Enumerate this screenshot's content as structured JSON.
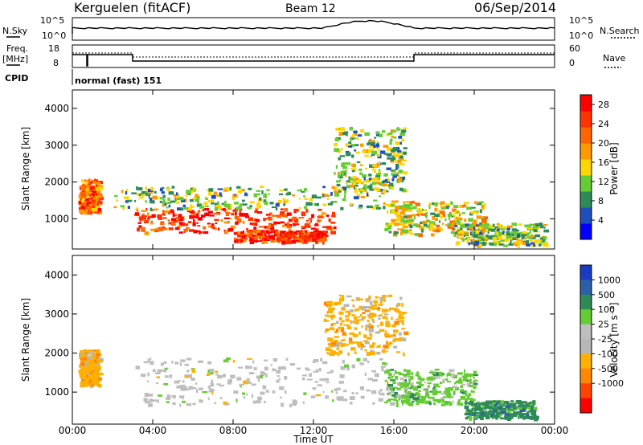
{
  "header": {
    "station": "Kerguelen (fitACF)",
    "beam": "Beam 12",
    "date": "06/Sep/2014"
  },
  "noise_panel": {
    "left_label": "N.Sky",
    "right_label": "N.Search",
    "tick_top": "10^5",
    "tick_bottom": "10^0"
  },
  "freq_panel": {
    "label_line1": "Freq.",
    "label_line2": "[MHz]",
    "ticks_left": [
      "18",
      "8"
    ],
    "ticks_right": [
      "60",
      "0"
    ],
    "right_label": "Nave"
  },
  "cpid": {
    "label": "CPID",
    "value": "normal (fast) 151"
  },
  "colors": {
    "power": [
      "#0000ff",
      "#1f4fbf",
      "#2e8b57",
      "#66cc33",
      "#ffd700",
      "#ff9900",
      "#ff6600",
      "#ff3300",
      "#ff0000"
    ],
    "velocity": [
      "#1a3cc4",
      "#2b5fa8",
      "#2e8b57",
      "#66cc33",
      "#bebebe",
      "#b7b7b7",
      "#ffb000",
      "#ff8800",
      "#ff4400",
      "#ff0000"
    ]
  },
  "chart_data": [
    {
      "type": "heatmap",
      "title": "Power",
      "xlabel": "",
      "ylabel": "Slant Range [km]",
      "xlim": [
        "00:00",
        "24:00"
      ],
      "ylim": [
        180,
        4500
      ],
      "yticks": [
        "1000",
        "2000",
        "3000",
        "4000"
      ],
      "colorbar": {
        "label": "Power [dB]",
        "ticks": [
          "4",
          "8",
          "12",
          "16",
          "20",
          "24",
          "28"
        ],
        "range": [
          0,
          30
        ]
      },
      "regions": [
        {
          "t_start": 0.3,
          "t_end": 1.3,
          "range_low": 1200,
          "range_high": 2100,
          "value": 22
        },
        {
          "t_start": 3.0,
          "t_end": 13.0,
          "range_low": 650,
          "range_high": 1300,
          "value": 27
        },
        {
          "t_start": 8.0,
          "t_end": 12.5,
          "range_low": 400,
          "range_high": 700,
          "value": 28
        },
        {
          "t_start": 2.0,
          "t_end": 15.5,
          "range_low": 1300,
          "range_high": 1900,
          "value": 12
        },
        {
          "t_start": 13.0,
          "t_end": 16.5,
          "range_low": 1800,
          "range_high": 3500,
          "value": 10
        },
        {
          "t_start": 15.5,
          "t_end": 20.5,
          "range_low": 600,
          "range_high": 1500,
          "value": 14
        },
        {
          "t_start": 19.0,
          "t_end": 23.5,
          "range_low": 300,
          "range_high": 900,
          "value": 10
        }
      ]
    },
    {
      "type": "heatmap",
      "title": "Velocity",
      "xlabel": "Time UT",
      "ylabel": "Slant Range [km]",
      "xlim": [
        "00:00",
        "24:00"
      ],
      "xticks": [
        "00:00",
        "04:00",
        "08:00",
        "12:00",
        "16:00",
        "20:00",
        "00:00"
      ],
      "ylim": [
        180,
        4500
      ],
      "yticks": [
        "1000",
        "2000",
        "3000",
        "4000"
      ],
      "colorbar": {
        "label": "Velocity [m s⁻¹]",
        "ticks": [
          "1000",
          "500",
          "100",
          "25",
          "-25",
          "-100",
          "-500",
          "-1000"
        ]
      },
      "regions": [
        {
          "t_start": 0.3,
          "t_end": 1.3,
          "range_low": 1200,
          "range_high": 2100,
          "value": -300
        },
        {
          "t_start": 3.0,
          "t_end": 16.0,
          "range_low": 700,
          "range_high": 1900,
          "value": 0
        },
        {
          "t_start": 12.5,
          "t_end": 16.5,
          "range_low": 2000,
          "range_high": 3500,
          "value": -100
        },
        {
          "t_start": 15.5,
          "t_end": 20.0,
          "range_low": 700,
          "range_high": 1600,
          "value": 100
        },
        {
          "t_start": 19.5,
          "t_end": 23.0,
          "range_low": 350,
          "range_high": 800,
          "value": 150
        }
      ]
    }
  ]
}
